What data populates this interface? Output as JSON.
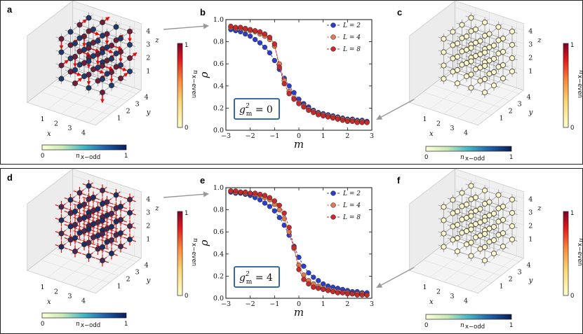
{
  "figure": {
    "rows": [
      {
        "letters": {
          "left": "a",
          "middle": "b",
          "right": "c"
        },
        "annotation_g": "g",
        "annotation_sub": "m",
        "annotation_sup": "2",
        "annotation_value": " = 0",
        "left_lattice": {
          "links": "red-arrows",
          "node_fill": "#6e1e3a"
        },
        "right_lattice": {
          "links": "none",
          "node_fill": "#fdf7cd"
        }
      },
      {
        "letters": {
          "left": "d",
          "middle": "e",
          "right": "f"
        },
        "annotation_g": "g",
        "annotation_sub": "m",
        "annotation_sup": "2",
        "annotation_value": " = 4",
        "left_lattice": {
          "links": "red-dashes",
          "node_fill": "#4a2850"
        },
        "right_lattice": {
          "links": "none",
          "node_fill": "#fdf7cd"
        }
      }
    ],
    "lattice_axes": {
      "x_label": "x",
      "y_label": "y",
      "z_label": "z",
      "x_ticks": [
        "1",
        "2",
        "3",
        "4"
      ],
      "y_ticks": [
        "1",
        "2",
        "3",
        "4"
      ],
      "z_ticks": [
        "1",
        "2",
        "3",
        "4"
      ]
    },
    "colorbar_odd": {
      "label": "n",
      "sub": "x−odd",
      "min": "0",
      "max": "1"
    },
    "colorbar_even": {
      "label": "n",
      "sub": "x−even",
      "min": "0",
      "max": "1"
    }
  },
  "chart_data": [
    {
      "type": "line",
      "panel": "b",
      "xlabel": "m",
      "ylabel": "ρ",
      "xlim": [
        -3,
        3
      ],
      "ylim": [
        0,
        1.0
      ],
      "xticks": [
        "−3",
        "−2",
        "−1",
        "0",
        "1",
        "2",
        "3"
      ],
      "yticks": [
        "0.0",
        "0.2",
        "0.4",
        "0.6",
        "0.8",
        "1.0"
      ],
      "legend_loc": "top-right",
      "x": [
        -2.8,
        -2.6,
        -2.4,
        -2.2,
        -2.0,
        -1.8,
        -1.6,
        -1.4,
        -1.2,
        -1.0,
        -0.8,
        -0.6,
        -0.4,
        -0.2,
        0.0,
        0.2,
        0.4,
        0.6,
        0.8,
        1.0,
        1.2,
        1.4,
        1.6,
        1.8,
        2.0,
        2.2,
        2.4,
        2.6,
        2.8
      ],
      "series": [
        {
          "name": "L = 2",
          "color": "#2b3fc9",
          "values": [
            0.91,
            0.9,
            0.89,
            0.87,
            0.85,
            0.82,
            0.79,
            0.75,
            0.7,
            0.63,
            0.55,
            0.47,
            0.4,
            0.34,
            0.28,
            0.24,
            0.21,
            0.18,
            0.16,
            0.15,
            0.14,
            0.13,
            0.12,
            0.11,
            0.1,
            0.1,
            0.09,
            0.09,
            0.08
          ]
        },
        {
          "name": "L = 4",
          "color": "#e07a50",
          "values": [
            0.93,
            0.92,
            0.92,
            0.91,
            0.9,
            0.89,
            0.87,
            0.85,
            0.82,
            0.76,
            0.6,
            0.45,
            0.35,
            0.29,
            0.25,
            0.22,
            0.19,
            0.17,
            0.15,
            0.14,
            0.13,
            0.12,
            0.11,
            0.1,
            0.09,
            0.09,
            0.08,
            0.08,
            0.07
          ]
        },
        {
          "name": "L = 8",
          "color": "#c62a2a",
          "values": [
            0.94,
            0.93,
            0.93,
            0.92,
            0.91,
            0.9,
            0.89,
            0.87,
            0.84,
            0.78,
            0.57,
            0.42,
            0.33,
            0.28,
            0.24,
            0.21,
            0.18,
            0.16,
            0.14,
            0.13,
            0.12,
            0.11,
            0.1,
            0.09,
            0.08,
            0.08,
            0.07,
            0.07,
            0.07
          ]
        }
      ]
    },
    {
      "type": "line",
      "panel": "e",
      "xlabel": "m",
      "ylabel": "ρ",
      "xlim": [
        -3,
        3
      ],
      "ylim": [
        0,
        1.0
      ],
      "xticks": [
        "−3",
        "−2",
        "−1",
        "0",
        "1",
        "2",
        "3"
      ],
      "yticks": [
        "0.0",
        "0.2",
        "0.4",
        "0.6",
        "0.8",
        "1.0"
      ],
      "legend_loc": "top-right",
      "x": [
        -2.8,
        -2.6,
        -2.4,
        -2.2,
        -2.0,
        -1.8,
        -1.6,
        -1.4,
        -1.2,
        -1.0,
        -0.8,
        -0.6,
        -0.4,
        -0.2,
        0.0,
        0.2,
        0.4,
        0.6,
        0.8,
        1.0,
        1.2,
        1.4,
        1.6,
        1.8,
        2.0,
        2.2,
        2.4,
        2.6,
        2.8
      ],
      "series": [
        {
          "name": "L = 2",
          "color": "#2b3fc9",
          "values": [
            0.96,
            0.95,
            0.95,
            0.94,
            0.93,
            0.91,
            0.89,
            0.86,
            0.83,
            0.79,
            0.73,
            0.66,
            0.57,
            0.47,
            0.37,
            0.29,
            0.23,
            0.19,
            0.16,
            0.13,
            0.11,
            0.1,
            0.09,
            0.08,
            0.07,
            0.06,
            0.06,
            0.05,
            0.05
          ]
        },
        {
          "name": "L = 4",
          "color": "#e07a50",
          "values": [
            0.97,
            0.96,
            0.96,
            0.95,
            0.95,
            0.94,
            0.93,
            0.91,
            0.89,
            0.85,
            0.8,
            0.72,
            0.6,
            0.45,
            0.3,
            0.21,
            0.16,
            0.13,
            0.11,
            0.09,
            0.08,
            0.07,
            0.06,
            0.05,
            0.05,
            0.04,
            0.04,
            0.04,
            0.03
          ]
        },
        {
          "name": "L = 8",
          "color": "#c62a2a",
          "values": [
            0.97,
            0.97,
            0.96,
            0.96,
            0.95,
            0.95,
            0.94,
            0.93,
            0.91,
            0.88,
            0.84,
            0.77,
            0.64,
            0.46,
            0.26,
            0.17,
            0.13,
            0.1,
            0.09,
            0.08,
            0.07,
            0.06,
            0.05,
            0.05,
            0.04,
            0.04,
            0.03,
            0.03,
            0.03
          ]
        }
      ]
    }
  ]
}
